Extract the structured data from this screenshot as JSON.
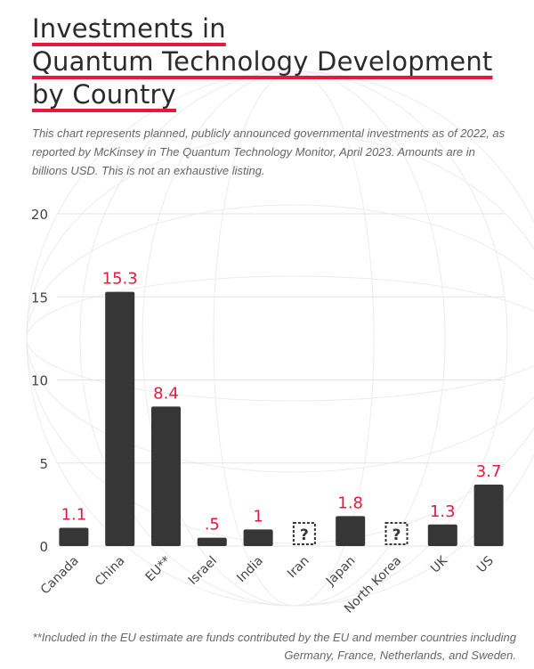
{
  "chart_data": {
    "type": "bar",
    "title": [
      "Investments in",
      "Quantum Technology Development",
      "by Country"
    ],
    "subtitle": "This chart represents planned, publicly announced governmental investments as of 2022, as reported by McKinsey in The Quantum Technology Monitor, April 2023. Amounts are in billions USD. This is not an exhaustive listing.",
    "categories": [
      "Canada",
      "China",
      "EU**",
      "Israel",
      "India",
      "Iran",
      "Japan",
      "North Korea",
      "UK",
      "US"
    ],
    "values": [
      1.1,
      15.3,
      8.4,
      0.5,
      1,
      null,
      1.8,
      null,
      1.3,
      3.7
    ],
    "value_labels": [
      "1.1",
      "15.3",
      "8.4",
      ".5",
      "1",
      "?",
      "1.8",
      "?",
      "1.3",
      "3.7"
    ],
    "color": "#363636",
    "label_color": "#e8173d",
    "ylim": [
      0,
      20
    ],
    "yticks": [
      0,
      5,
      10,
      15,
      20
    ],
    "grid": true,
    "footnote": "**Included in the EU estimate are funds contributed by the EU and member countries including Germany, France, Netherlands, and Sweden."
  }
}
